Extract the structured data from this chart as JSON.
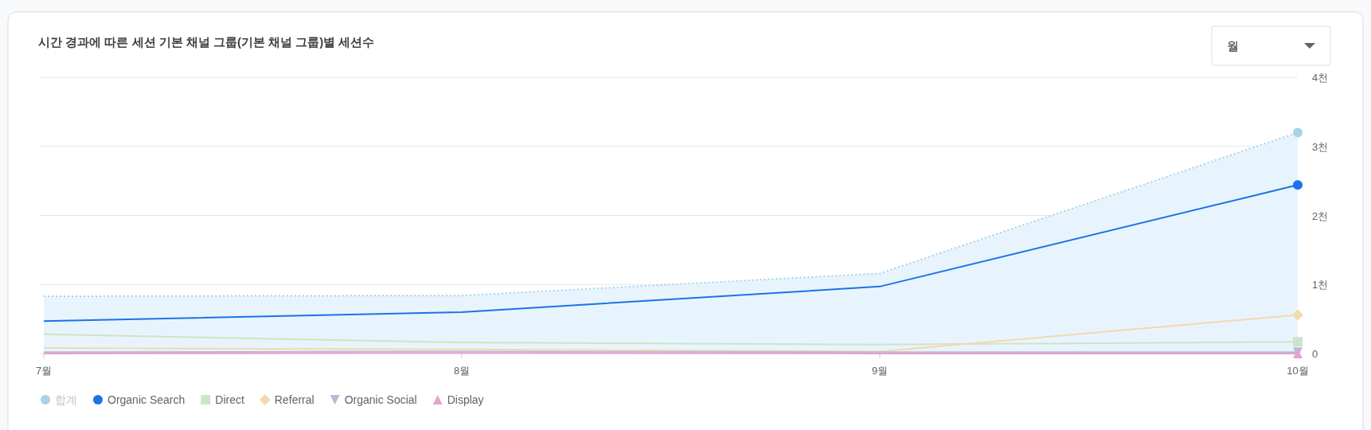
{
  "chart_data": {
    "type": "line",
    "title": "시간 경과에 따른 세션 기본 채널 그룹(기본 채널 그룹)별 세션수",
    "annotations": [
      "월"
    ],
    "categories": [
      "7월",
      "8월",
      "9월",
      "10월"
    ],
    "series": [
      {
        "name": "합계",
        "type": "area",
        "color": "#a8d1ea",
        "line_style": "dotted",
        "values": [
          0.83,
          0.84,
          1.16,
          3.2
        ]
      },
      {
        "name": "Organic Search",
        "color": "#1a73e8",
        "values": [
          0.47,
          0.6,
          0.97,
          2.44
        ]
      },
      {
        "name": "Direct",
        "color": "#cfe3c8",
        "values": [
          0.28,
          0.16,
          0.13,
          0.17
        ]
      },
      {
        "name": "Referral",
        "color": "#f3d9ae",
        "values": [
          0.08,
          0.06,
          0.03,
          0.56
        ]
      },
      {
        "name": "Organic Social",
        "color": "#b9b9d9",
        "values": [
          0.02,
          0.03,
          0.02,
          0.02
        ]
      },
      {
        "name": "Display",
        "color": "#e6a3cf",
        "values": [
          0,
          0.01,
          0,
          0
        ]
      }
    ],
    "ylim": [
      0,
      4
    ],
    "yticks": [
      0,
      {
        "value": 1,
        "label": "1천"
      },
      {
        "value": 2,
        "label": "2천"
      },
      {
        "value": 3,
        "label": "3천"
      },
      {
        "value": 4,
        "label": "4천"
      }
    ],
    "grid": "y",
    "legend": "bottom left"
  }
}
